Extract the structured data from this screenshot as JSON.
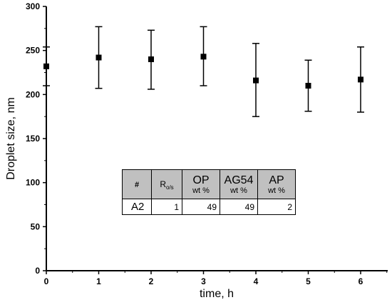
{
  "chart_data": {
    "type": "scatter",
    "xlabel": "time, h",
    "ylabel": "Droplet size, nm",
    "xlim": [
      0,
      6.5
    ],
    "ylim": [
      0,
      300
    ],
    "x_ticks": [
      0,
      1,
      2,
      3,
      4,
      5,
      6
    ],
    "y_ticks": [
      0,
      50,
      100,
      150,
      200,
      250,
      300
    ],
    "series": [
      {
        "x": [
          0,
          1,
          2,
          3,
          4,
          5,
          6
        ],
        "y": [
          232,
          242,
          240,
          243,
          216,
          210,
          217
        ],
        "y_err_upper": [
          254,
          277,
          273,
          277,
          258,
          239,
          254
        ],
        "y_err_lower": [
          210,
          207,
          206,
          210,
          175,
          181,
          180
        ],
        "marker": "square",
        "color": "#000000"
      }
    ],
    "grid": false
  },
  "table": {
    "headers": {
      "id": "#",
      "ratio_main": "R",
      "ratio_sub": "o/s",
      "op_main": "OP",
      "op_sub": "wt %",
      "ag_main": "AG54",
      "ag_sub": "wt %",
      "ap_main": "AP",
      "ap_sub": "wt %"
    },
    "row": {
      "sample": "A2",
      "ratio": "1",
      "op": "49",
      "ag": "49",
      "ap": "2"
    }
  }
}
